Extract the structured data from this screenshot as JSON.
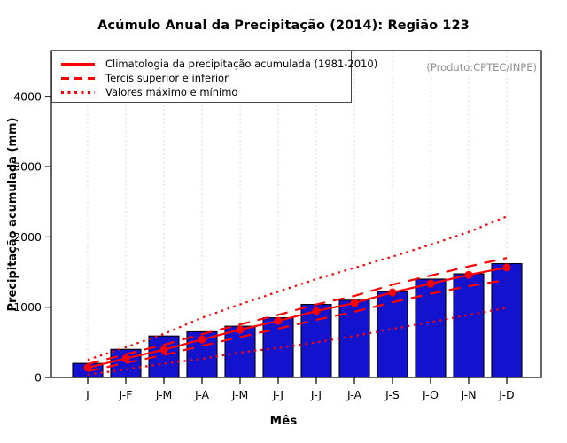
{
  "title": "Acúmulo Anual da Precipitação (2014): Região 123",
  "watermark": "(Produto:CPTEC/INPE)",
  "legend": {
    "position": "top-left",
    "items": [
      {
        "label": "Climatologia da precipitação acumulada (1981-2010)",
        "style": "solid"
      },
      {
        "label": "Tercis superior e inferior",
        "style": "long-dash"
      },
      {
        "label": "Valores máximo e mínimo",
        "style": "dotted"
      }
    ]
  },
  "chart_data": {
    "type": "bar",
    "title": "Acúmulo Anual da Precipitação (2014): Região 123",
    "xlabel": "Mês",
    "ylabel": "Precipitação acumulada (mm)",
    "categories": [
      "J",
      "J-F",
      "J-M",
      "J-A",
      "J-M",
      "J-J",
      "J-J",
      "J-A",
      "J-S",
      "J-O",
      "J-N",
      "J-D"
    ],
    "yticks": [
      0,
      1000,
      2000,
      3000,
      4000
    ],
    "ylim": [
      0,
      4650
    ],
    "grid": "vertical-dashed-per-month",
    "legend_position": "top-left",
    "bars": {
      "name": "Precipitação acumulada (2014)",
      "values": [
        200,
        400,
        590,
        650,
        730,
        850,
        1040,
        1100,
        1220,
        1400,
        1475,
        1620
      ]
    },
    "series": [
      {
        "name": "Climatologia da precipitação acumulada (1981-2010)",
        "style": "solid-with-round-markers",
        "values": [
          140,
          270,
          395,
          540,
          680,
          805,
          945,
          1060,
          1210,
          1335,
          1460,
          1565
        ]
      },
      {
        "name": "Tercil superior",
        "style": "long-dash",
        "values": [
          190,
          330,
          465,
          615,
          755,
          890,
          1040,
          1160,
          1320,
          1450,
          1580,
          1700
        ]
      },
      {
        "name": "Tercil inferior",
        "style": "long-dash",
        "values": [
          90,
          205,
          320,
          450,
          575,
          695,
          820,
          935,
          1070,
          1190,
          1300,
          1390
        ]
      },
      {
        "name": "Valor máximo",
        "style": "dotted",
        "values": [
          250,
          430,
          620,
          850,
          1040,
          1220,
          1400,
          1560,
          1720,
          1890,
          2070,
          2290
        ]
      },
      {
        "name": "Valor mínimo",
        "style": "dotted",
        "values": [
          40,
          115,
          195,
          265,
          355,
          420,
          500,
          590,
          690,
          790,
          890,
          990
        ]
      }
    ]
  },
  "colors": {
    "bar": "#1313cd",
    "line": "#ff0000",
    "grid": "#d9d9d9",
    "axis": "#000000",
    "watermark": "#8f8f8f"
  }
}
